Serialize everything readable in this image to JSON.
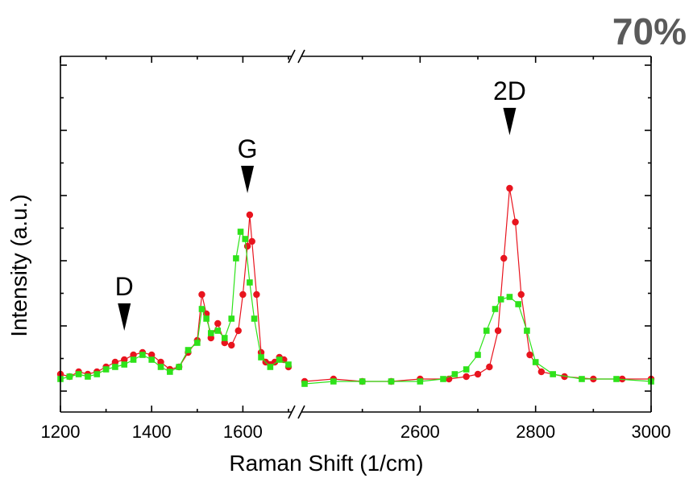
{
  "badge": "70%",
  "chart_data": {
    "type": "scatter",
    "title": "",
    "xlabel": "Raman Shift (1/cm)",
    "ylabel": "Intensity (a.u.)",
    "axis_break": {
      "left_range": [
        1200,
        1700
      ],
      "right_range": [
        2400,
        3000
      ]
    },
    "x_ticks": [
      1200,
      1400,
      1600,
      2600,
      2800,
      3000
    ],
    "y_tick_labels": false,
    "grid": false,
    "colors": {
      "red": "#e8141e",
      "green": "#2ee21a"
    },
    "peaks": [
      {
        "label": "D",
        "x": 1340,
        "y": 0.25
      },
      {
        "label": "G",
        "x": 1610,
        "y": 0.82
      },
      {
        "label": "2D",
        "x": 2755,
        "y": 1.06
      }
    ],
    "series": [
      {
        "color": "red",
        "marker": "circle",
        "connected": true,
        "segments": [
          [
            [
              1200,
              0.07
            ],
            [
              1220,
              0.06
            ],
            [
              1240,
              0.08
            ],
            [
              1260,
              0.07
            ],
            [
              1280,
              0.08
            ],
            [
              1300,
              0.1
            ],
            [
              1320,
              0.12
            ],
            [
              1340,
              0.13
            ],
            [
              1360,
              0.15
            ],
            [
              1380,
              0.16
            ],
            [
              1400,
              0.15
            ],
            [
              1420,
              0.12
            ],
            [
              1440,
              0.09
            ],
            [
              1460,
              0.1
            ],
            [
              1480,
              0.16
            ],
            [
              1500,
              0.21
            ],
            [
              1510,
              0.4
            ],
            [
              1520,
              0.32
            ],
            [
              1530,
              0.22
            ],
            [
              1545,
              0.28
            ],
            [
              1560,
              0.2
            ],
            [
              1575,
              0.19
            ],
            [
              1590,
              0.25
            ],
            [
              1600,
              0.4
            ],
            [
              1610,
              0.6
            ],
            [
              1615,
              0.73
            ],
            [
              1620,
              0.62
            ],
            [
              1630,
              0.4
            ],
            [
              1640,
              0.16
            ],
            [
              1650,
              0.12
            ],
            [
              1660,
              0.11
            ],
            [
              1670,
              0.12
            ],
            [
              1680,
              0.14
            ],
            [
              1690,
              0.13
            ],
            [
              1700,
              0.1
            ]
          ],
          [
            [
              2400,
              0.04
            ],
            [
              2450,
              0.05
            ],
            [
              2500,
              0.04
            ],
            [
              2550,
              0.04
            ],
            [
              2600,
              0.05
            ],
            [
              2650,
              0.05
            ],
            [
              2680,
              0.06
            ],
            [
              2700,
              0.07
            ],
            [
              2720,
              0.1
            ],
            [
              2735,
              0.25
            ],
            [
              2745,
              0.55
            ],
            [
              2755,
              0.84
            ],
            [
              2765,
              0.7
            ],
            [
              2775,
              0.4
            ],
            [
              2790,
              0.15
            ],
            [
              2810,
              0.08
            ],
            [
              2850,
              0.06
            ],
            [
              2900,
              0.05
            ],
            [
              2950,
              0.05
            ],
            [
              3000,
              0.05
            ]
          ]
        ]
      },
      {
        "color": "green",
        "marker": "square",
        "connected": true,
        "segments": [
          [
            [
              1200,
              0.05
            ],
            [
              1220,
              0.06
            ],
            [
              1240,
              0.07
            ],
            [
              1260,
              0.06
            ],
            [
              1280,
              0.07
            ],
            [
              1300,
              0.09
            ],
            [
              1320,
              0.1
            ],
            [
              1340,
              0.11
            ],
            [
              1360,
              0.13
            ],
            [
              1380,
              0.15
            ],
            [
              1400,
              0.13
            ],
            [
              1420,
              0.1
            ],
            [
              1440,
              0.08
            ],
            [
              1460,
              0.1
            ],
            [
              1480,
              0.17
            ],
            [
              1500,
              0.2
            ],
            [
              1510,
              0.34
            ],
            [
              1520,
              0.3
            ],
            [
              1530,
              0.24
            ],
            [
              1545,
              0.25
            ],
            [
              1560,
              0.22
            ],
            [
              1575,
              0.3
            ],
            [
              1585,
              0.55
            ],
            [
              1595,
              0.66
            ],
            [
              1605,
              0.63
            ],
            [
              1615,
              0.45
            ],
            [
              1625,
              0.3
            ],
            [
              1640,
              0.14
            ],
            [
              1660,
              0.1
            ],
            [
              1680,
              0.13
            ],
            [
              1700,
              0.11
            ]
          ],
          [
            [
              2400,
              0.03
            ],
            [
              2450,
              0.04
            ],
            [
              2500,
              0.04
            ],
            [
              2550,
              0.04
            ],
            [
              2600,
              0.04
            ],
            [
              2640,
              0.05
            ],
            [
              2660,
              0.07
            ],
            [
              2680,
              0.09
            ],
            [
              2700,
              0.15
            ],
            [
              2715,
              0.25
            ],
            [
              2730,
              0.34
            ],
            [
              2740,
              0.38
            ],
            [
              2755,
              0.39
            ],
            [
              2770,
              0.36
            ],
            [
              2785,
              0.25
            ],
            [
              2800,
              0.12
            ],
            [
              2830,
              0.07
            ],
            [
              2880,
              0.05
            ],
            [
              2940,
              0.05
            ],
            [
              3000,
              0.04
            ]
          ]
        ]
      }
    ]
  }
}
